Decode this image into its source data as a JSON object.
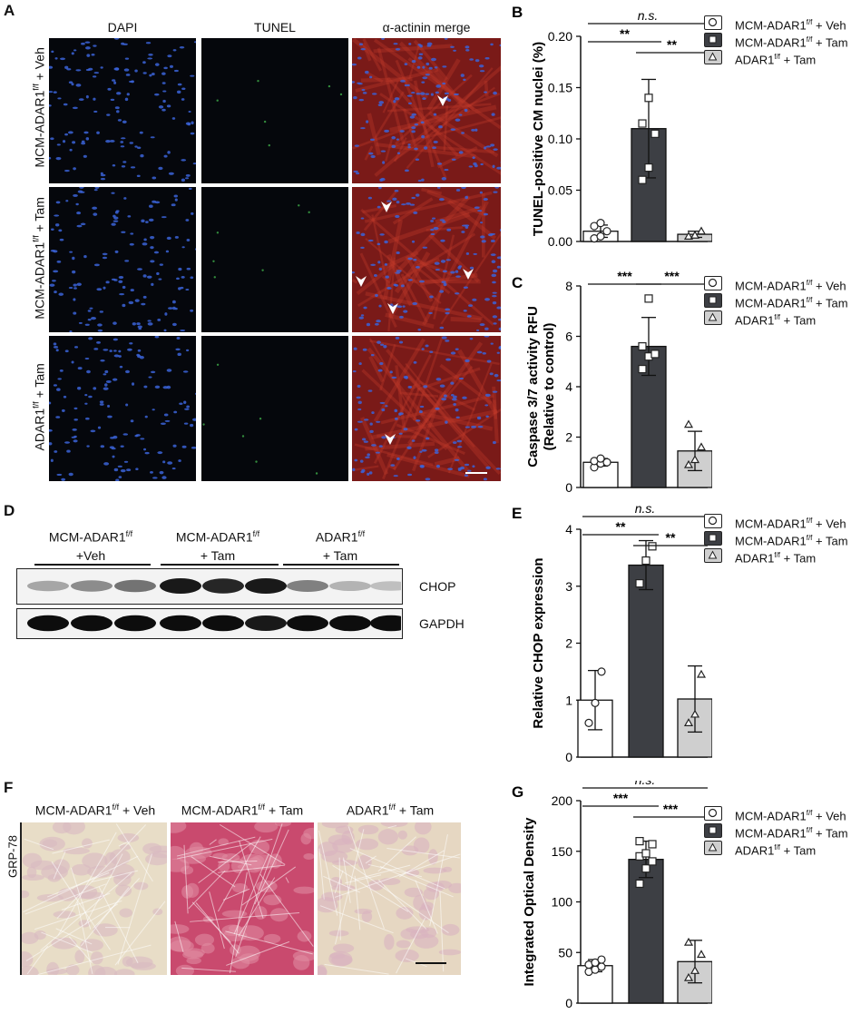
{
  "panels": {
    "A": {
      "letter": "A",
      "columns": [
        "DAPI",
        "TUNEL",
        "α-actinin merge"
      ],
      "rows": [
        {
          "base": "MCM-ADAR1",
          "sup": "f/f",
          "suffix": " + Veh"
        },
        {
          "base": "MCM-ADAR1",
          "sup": "f/f",
          "suffix": " + Tam"
        },
        {
          "base": "ADAR1",
          "sup": "f/f",
          "suffix": " + Tam"
        }
      ]
    },
    "D": {
      "letter": "D",
      "groups": [
        {
          "line1": "MCM-ADAR1",
          "sup": "f/f",
          "line2": "+Veh"
        },
        {
          "line1": "MCM-ADAR1",
          "sup": "f/f",
          "line2": "+ Tam"
        },
        {
          "line1": "ADAR1",
          "sup": "f/f",
          "line2": "+ Tam"
        }
      ],
      "bands": [
        "CHOP",
        "GAPDH"
      ],
      "chop_intensity": [
        0.35,
        0.45,
        0.55,
        0.9,
        0.85,
        0.9,
        0.5,
        0.3,
        0.25
      ],
      "gapdh_intensity": [
        0.95,
        0.95,
        0.95,
        0.95,
        0.95,
        0.9,
        0.95,
        0.95,
        0.95
      ]
    },
    "F": {
      "letter": "F",
      "side_label": "GRP-78",
      "columns": [
        {
          "base": "MCM-ADAR1",
          "sup": "f/f",
          "suffix": " + Veh"
        },
        {
          "base": "MCM-ADAR1",
          "sup": "f/f",
          "suffix": " + Tam"
        },
        {
          "base": "ADAR1",
          "sup": "f/f",
          "suffix": " + Tam"
        }
      ]
    }
  },
  "legend": [
    {
      "base": "MCM-ADAR1",
      "sup": "f/f",
      "suffix": " + Veh",
      "fill": "#ffffff",
      "marker": "circle"
    },
    {
      "base": "MCM-ADAR1",
      "sup": "f/f",
      "suffix": " + Tam",
      "fill": "#3d3f44",
      "marker": "square"
    },
    {
      "base": "ADAR1",
      "sup": "f/f",
      "suffix": " + Tam",
      "fill": "#cfcfcf",
      "marker": "triangle"
    }
  ],
  "colors": {
    "veh": "#ffffff",
    "tam": "#3d3f44",
    "adar": "#cfcfcf"
  },
  "chart_data": [
    {
      "letter": "B",
      "type": "bar",
      "ylabel": "TUNEL-positive CM nuclei (%)",
      "ylim": [
        0,
        0.2
      ],
      "ticks": [
        "0.00",
        "0.05",
        "0.10",
        "0.15",
        "0.20"
      ],
      "tick_values": [
        0,
        0.05,
        0.1,
        0.15,
        0.2
      ],
      "values": [
        0.01,
        0.11,
        0.007
      ],
      "errors": [
        0.006,
        0.048,
        0.003
      ],
      "points": [
        [
          0.003,
          0.005,
          0.01,
          0.015,
          0.018
        ],
        [
          0.06,
          0.072,
          0.105,
          0.115,
          0.14
        ],
        [
          0.005,
          0.006,
          0.01
        ]
      ],
      "markers": [
        "circle",
        "square",
        "triangle"
      ],
      "sig": [
        {
          "from": 0,
          "to": 2,
          "label": "n.s."
        },
        {
          "from": 0,
          "to": 1,
          "label": "**"
        },
        {
          "from": 1,
          "to": 2,
          "label": "**"
        }
      ]
    },
    {
      "letter": "C",
      "type": "bar",
      "ylabel": [
        "Caspase 3/7 activity RFU",
        "(Relative to control)"
      ],
      "ylim": [
        0,
        8
      ],
      "ticks": [
        "0",
        "2",
        "4",
        "6",
        "8"
      ],
      "tick_values": [
        0,
        2,
        4,
        6,
        8
      ],
      "values": [
        1.0,
        5.6,
        1.45
      ],
      "errors": [
        0.15,
        1.15,
        0.78
      ],
      "points": [
        [
          0.8,
          0.95,
          1.0,
          1.05,
          1.15
        ],
        [
          4.7,
          5.2,
          5.3,
          5.6,
          7.5
        ],
        [
          0.9,
          1.1,
          1.6,
          2.5
        ]
      ],
      "markers": [
        "circle",
        "square",
        "triangle"
      ],
      "sig": [
        {
          "from": 0,
          "to": 1,
          "label": "***"
        },
        {
          "from": 1,
          "to": 2,
          "label": "***"
        }
      ]
    },
    {
      "letter": "E",
      "type": "bar",
      "ylabel": "Relative CHOP expression",
      "ylim": [
        0,
        4
      ],
      "ticks": [
        "0",
        "1",
        "2",
        "3",
        "4"
      ],
      "tick_values": [
        0,
        1,
        2,
        3,
        4
      ],
      "values": [
        1.0,
        3.37,
        1.02
      ],
      "errors": [
        0.52,
        0.43,
        0.58
      ],
      "points": [
        [
          0.6,
          0.95,
          1.5
        ],
        [
          3.05,
          3.45,
          3.7
        ],
        [
          0.6,
          0.75,
          1.45
        ]
      ],
      "markers": [
        "circle",
        "square",
        "triangle"
      ],
      "sig": [
        {
          "from": 0,
          "to": 2,
          "label": "n.s."
        },
        {
          "from": 0,
          "to": 1,
          "label": "**"
        },
        {
          "from": 1,
          "to": 2,
          "label": "**"
        }
      ]
    },
    {
      "letter": "G",
      "type": "bar",
      "ylabel": "Integrated Optical Density",
      "ylim": [
        0,
        200
      ],
      "ticks": [
        "0",
        "50",
        "100",
        "150",
        "200"
      ],
      "tick_values": [
        0,
        50,
        100,
        150,
        200
      ],
      "values": [
        37,
        142,
        41
      ],
      "errors": [
        6,
        18,
        21
      ],
      "points": [
        [
          31,
          33,
          36,
          38,
          40,
          43
        ],
        [
          118,
          133,
          140,
          145,
          148,
          157,
          160
        ],
        [
          25,
          32,
          48,
          60
        ]
      ],
      "markers": [
        "circle",
        "square",
        "triangle"
      ],
      "sig": [
        {
          "from": 0,
          "to": 2,
          "label": "n.s."
        },
        {
          "from": 0,
          "to": 1,
          "label": "***"
        },
        {
          "from": 1,
          "to": 2,
          "label": "***"
        }
      ]
    }
  ]
}
